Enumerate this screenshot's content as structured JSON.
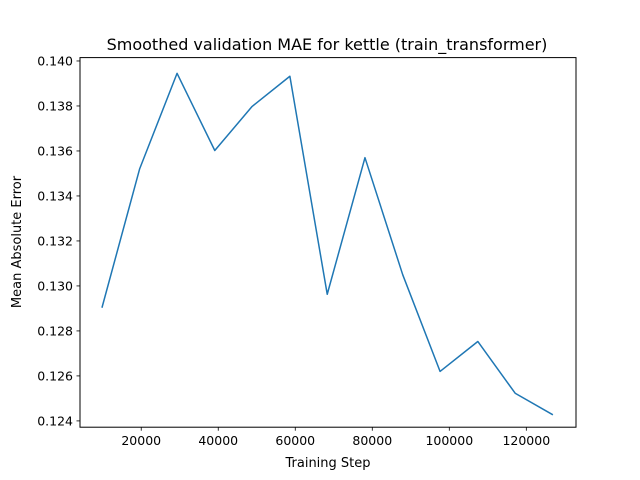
{
  "chart_data": {
    "type": "line",
    "title": "Smoothed validation MAE for kettle (train_transformer)",
    "xlabel": "Training Step",
    "ylabel": "Mean Absolute Error",
    "xlim": [
      4100,
      132900
    ],
    "ylim": [
      0.12372,
      0.14015
    ],
    "xticks": [
      20000,
      40000,
      60000,
      80000,
      100000,
      120000
    ],
    "xtick_labels": [
      "20000",
      "40000",
      "60000",
      "80000",
      "100000",
      "120000"
    ],
    "yticks": [
      0.124,
      0.126,
      0.128,
      0.13,
      0.132,
      0.134,
      0.136,
      0.138,
      0.14
    ],
    "ytick_labels": [
      "0.124",
      "0.126",
      "0.128",
      "0.130",
      "0.132",
      "0.134",
      "0.136",
      "0.138",
      "0.140"
    ],
    "grid": false,
    "series": [
      {
        "color": "#1f77b4",
        "x": [
          9800,
          19600,
          29300,
          39100,
          48800,
          58600,
          68300,
          78100,
          87900,
          97600,
          107400,
          117100,
          126900
        ],
        "y": [
          0.12903,
          0.13521,
          0.13945,
          0.13602,
          0.13798,
          0.13932,
          0.12963,
          0.1357,
          0.1305,
          0.1262,
          0.12753,
          0.12523,
          0.12427
        ]
      }
    ]
  }
}
